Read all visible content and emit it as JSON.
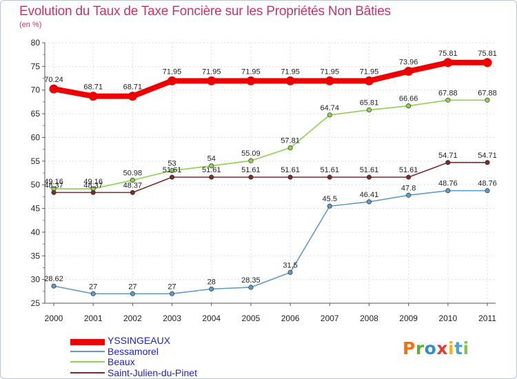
{
  "title": "Evolution du Taux de Taxe Foncière sur les Propriétés Non Bâties",
  "unit_label": "(en %)",
  "logo_text": "Proxiti",
  "logo_colors": [
    "#e8731c",
    "#5ab22d",
    "#2f8fd3",
    "#e23c2f",
    "#f2b319",
    "#3fa6dc",
    "#8bc34a"
  ],
  "chart_data": {
    "type": "line",
    "title": "Evolution du Taux de Taxe Foncière sur les Propriétés Non Bâties",
    "xlabel": "",
    "ylabel": "(en %)",
    "ylim": [
      25,
      80
    ],
    "yticks": [
      25,
      30,
      35,
      40,
      45,
      50,
      55,
      60,
      65,
      70,
      75,
      80
    ],
    "grid": true,
    "legend_position": "bottom-left",
    "categories": [
      "2000",
      "2001",
      "2002",
      "2003",
      "2004",
      "2005",
      "2006",
      "2007",
      "2008",
      "2009",
      "2010",
      "2011"
    ],
    "series": [
      {
        "name": "YSSINGEAUX",
        "color": "#ee0000",
        "highlight": true,
        "values": [
          70.24,
          68.71,
          68.71,
          71.95,
          71.95,
          71.95,
          71.95,
          71.95,
          71.95,
          73.96,
          75.81,
          75.81
        ],
        "labels": [
          "70.24",
          "68.71",
          "68.71",
          "71.95",
          "71.95",
          "71.95",
          "71.95",
          "71.95",
          "71.95",
          "73.96",
          "75.81",
          "75.81"
        ]
      },
      {
        "name": "Bessamorel",
        "color": "#5f9ac9",
        "highlight": false,
        "values": [
          28.62,
          27,
          27,
          27,
          28,
          28.35,
          31.5,
          45.5,
          46.41,
          47.8,
          48.76,
          48.76
        ],
        "labels": [
          "28.62",
          "27",
          "27",
          "27",
          "28",
          "28.35",
          "31.5",
          "45.5",
          "46.41",
          "47.8",
          "48.76",
          "48.76"
        ]
      },
      {
        "name": "Beaux",
        "color": "#8cd24a",
        "highlight": false,
        "values": [
          49.16,
          49.16,
          50.98,
          53,
          54,
          55.09,
          57.81,
          64.74,
          65.81,
          66.66,
          67.88,
          67.88
        ],
        "labels": [
          "49.16",
          "49.16",
          "50.98",
          "53",
          "54",
          "55.09",
          "57.81",
          "64.74",
          "65.81",
          "66.66",
          "67.88",
          "67.88"
        ]
      },
      {
        "name": "Saint-Julien-du-Pinet",
        "color": "#7b2b2b",
        "highlight": false,
        "values": [
          48.37,
          48.37,
          48.37,
          51.61,
          51.61,
          51.61,
          51.61,
          51.61,
          51.61,
          51.61,
          54.71,
          54.71
        ],
        "labels": [
          "48.37",
          "48.37",
          "48.37",
          "51.61",
          "51.61",
          "51.61",
          "51.61",
          "51.61",
          "51.61",
          "51.61",
          "54.71",
          "54.71"
        ]
      }
    ]
  }
}
